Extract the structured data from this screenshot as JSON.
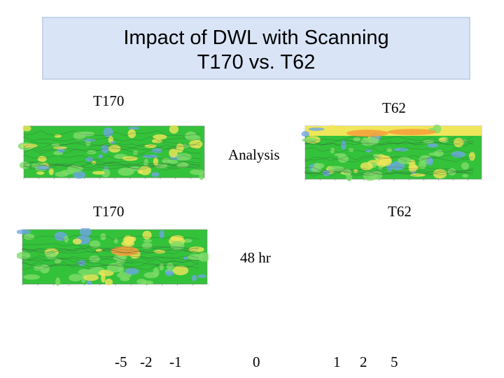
{
  "title": {
    "line1": "Impact of DWL with Scanning",
    "line2": "T170 vs. T62"
  },
  "labels": {
    "t170_top": "T170",
    "t62_top": "T62",
    "analysis": "Analysis",
    "t170_mid": "T170",
    "t62_mid": "T62",
    "hr48": "48 hr"
  },
  "color_scale": {
    "values": [
      "-5",
      "-2",
      "-1",
      "0",
      "1",
      "2",
      "5"
    ]
  },
  "panels": [
    {
      "name": "map-t170-analysis",
      "colors": {
        "base": "#33c23a",
        "low": "#6ea6e4",
        "high": "#f0e65a",
        "hot": "#f4a23c"
      }
    },
    {
      "name": "map-t62-analysis",
      "colors": {
        "base": "#33c23a",
        "low": "#6ea6e4",
        "high": "#f0e65a",
        "hot": "#f4a23c"
      }
    },
    {
      "name": "map-t170-48hr",
      "colors": {
        "base": "#33c23a",
        "low": "#6ea6e4",
        "high": "#f0e65a",
        "hot": "#f4a23c"
      }
    }
  ]
}
